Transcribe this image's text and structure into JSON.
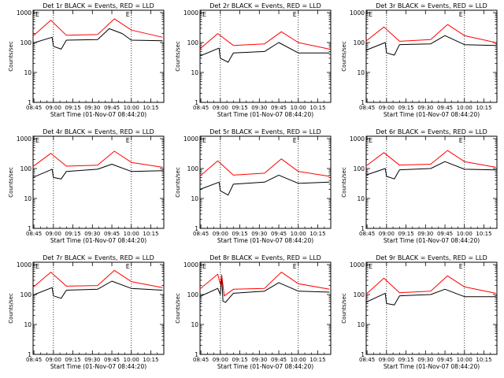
{
  "figure": {
    "start_label": "Start Time (01-Nov-07 08:44:20)",
    "ylabel": "Counts/sec",
    "corner_marker": "E",
    "x_ticks": [
      "08:45",
      "09:00",
      "09:15",
      "09:30",
      "09:45",
      "10:00",
      "10:15"
    ],
    "y_ticks": [
      "1",
      "10",
      "100",
      "1000"
    ]
  },
  "chart_data": [
    {
      "type": "line",
      "title": "Det 1r BLACK = Events, RED = LLD",
      "xlabel": "Start Time (01-Nov-07 08:44:20)",
      "ylabel": "Counts/sec",
      "y_scale": "log",
      "ylim": [
        1,
        1200
      ],
      "xlim": [
        "08:44:20",
        "10:25:00"
      ],
      "vlines": [
        "09:00",
        "10:00"
      ],
      "series": [
        {
          "name": "Events",
          "color": "#000000",
          "key_points": [
            [
              "08:44",
              "95"
            ],
            [
              "08:59",
              "150"
            ],
            [
              "09:00",
              "75"
            ],
            [
              "09:06",
              "60"
            ],
            [
              "09:10",
              "120"
            ],
            [
              "09:34",
              "125"
            ],
            [
              "09:43",
              "290"
            ],
            [
              "09:53",
              "200"
            ],
            [
              "10:00",
              "120"
            ],
            [
              "10:24",
              "115"
            ]
          ]
        },
        {
          "name": "LLD",
          "color": "#ff0000",
          "key_points": [
            [
              "08:44",
              "160"
            ],
            [
              "08:58",
              "560"
            ],
            [
              "09:10",
              "175"
            ],
            [
              "09:34",
              "185"
            ],
            [
              "09:47",
              "620"
            ],
            [
              "10:00",
              "260"
            ],
            [
              "10:24",
              "150"
            ]
          ]
        }
      ]
    },
    {
      "type": "line",
      "title": "Det 2r BLACK = Events, RED = LLD",
      "xlabel": "Start Time (01-Nov-07 08:44:20)",
      "ylabel": "Counts/sec",
      "y_scale": "log",
      "ylim": [
        1,
        1200
      ],
      "xlim": [
        "08:44:20",
        "10:25:00"
      ],
      "vlines": [
        "09:00",
        "10:00"
      ],
      "series": [
        {
          "name": "Events",
          "color": "#000000",
          "key_points": [
            [
              "08:44",
              "35"
            ],
            [
              "08:59",
              "65"
            ],
            [
              "09:00",
              "30"
            ],
            [
              "09:06",
              "22"
            ],
            [
              "09:10",
              "45"
            ],
            [
              "09:34",
              "50"
            ],
            [
              "09:45",
              "100"
            ],
            [
              "10:00",
              "45"
            ],
            [
              "10:24",
              "45"
            ]
          ]
        },
        {
          "name": "LLD",
          "color": "#ff0000",
          "key_points": [
            [
              "08:44",
              "60"
            ],
            [
              "08:58",
              "200"
            ],
            [
              "09:10",
              "80"
            ],
            [
              "09:34",
              "90"
            ],
            [
              "09:47",
              "230"
            ],
            [
              "10:00",
              "100"
            ],
            [
              "10:24",
              "60"
            ]
          ]
        }
      ]
    },
    {
      "type": "line",
      "title": "Det 3r BLACK = Events, RED = LLD",
      "xlabel": "Start Time (01-Nov-07 08:44:20)",
      "ylabel": "Counts/sec",
      "y_scale": "log",
      "ylim": [
        1,
        1200
      ],
      "xlim": [
        "08:44:20",
        "10:25:00"
      ],
      "vlines": [
        "09:00",
        "10:00"
      ],
      "series": [
        {
          "name": "Events",
          "color": "#000000",
          "key_points": [
            [
              "08:44",
              "55"
            ],
            [
              "08:59",
              "100"
            ],
            [
              "09:00",
              "45"
            ],
            [
              "09:06",
              "38"
            ],
            [
              "09:10",
              "85"
            ],
            [
              "09:34",
              "90"
            ],
            [
              "09:45",
              "170"
            ],
            [
              "10:00",
              "85"
            ],
            [
              "10:24",
              "80"
            ]
          ]
        },
        {
          "name": "LLD",
          "color": "#ff0000",
          "key_points": [
            [
              "08:44",
              "110"
            ],
            [
              "08:58",
              "330"
            ],
            [
              "09:10",
              "110"
            ],
            [
              "09:34",
              "125"
            ],
            [
              "09:47",
              "400"
            ],
            [
              "10:00",
              "170"
            ],
            [
              "10:24",
              "100"
            ]
          ]
        }
      ]
    },
    {
      "type": "line",
      "title": "Det 4r BLACK = Events, RED = LLD",
      "xlabel": "Start Time (01-Nov-07 08:44:20)",
      "ylabel": "Counts/sec",
      "y_scale": "log",
      "ylim": [
        1,
        1200
      ],
      "xlim": [
        "08:44:20",
        "10:25:00"
      ],
      "vlines": [
        "09:00",
        "10:00"
      ],
      "series": [
        {
          "name": "Events",
          "color": "#000000",
          "key_points": [
            [
              "08:44",
              "50"
            ],
            [
              "08:59",
              "95"
            ],
            [
              "09:00",
              "50"
            ],
            [
              "09:06",
              "45"
            ],
            [
              "09:10",
              "80"
            ],
            [
              "09:34",
              "95"
            ],
            [
              "09:45",
              "140"
            ],
            [
              "10:00",
              "80"
            ],
            [
              "10:24",
              "85"
            ]
          ]
        },
        {
          "name": "LLD",
          "color": "#ff0000",
          "key_points": [
            [
              "08:44",
              "115"
            ],
            [
              "08:58",
              "320"
            ],
            [
              "09:10",
              "120"
            ],
            [
              "09:34",
              "130"
            ],
            [
              "09:47",
              "380"
            ],
            [
              "10:00",
              "160"
            ],
            [
              "10:24",
              "110"
            ]
          ]
        }
      ]
    },
    {
      "type": "line",
      "title": "Det 5r BLACK = Events, RED = LLD",
      "xlabel": "Start Time (01-Nov-07 08:44:20)",
      "ylabel": "Counts/sec",
      "y_scale": "log",
      "ylim": [
        1,
        1200
      ],
      "xlim": [
        "08:44:20",
        "10:25:00"
      ],
      "vlines": [
        "09:00",
        "10:00"
      ],
      "series": [
        {
          "name": "Events",
          "color": "#000000",
          "key_points": [
            [
              "08:44",
              "20"
            ],
            [
              "08:59",
              "35"
            ],
            [
              "09:00",
              "18"
            ],
            [
              "09:06",
              "13"
            ],
            [
              "09:10",
              "30"
            ],
            [
              "09:34",
              "35"
            ],
            [
              "09:45",
              "60"
            ],
            [
              "10:00",
              "32"
            ],
            [
              "10:24",
              "35"
            ]
          ]
        },
        {
          "name": "LLD",
          "color": "#ff0000",
          "key_points": [
            [
              "08:44",
              "55"
            ],
            [
              "08:58",
              "180"
            ],
            [
              "09:10",
              "60"
            ],
            [
              "09:34",
              "70"
            ],
            [
              "09:47",
              "210"
            ],
            [
              "10:00",
              "80"
            ],
            [
              "10:24",
              "55"
            ]
          ]
        }
      ]
    },
    {
      "type": "line",
      "title": "Det 6r BLACK = Events, RED = LLD",
      "xlabel": "Start Time (01-Nov-07 08:44:20)",
      "ylabel": "Counts/sec",
      "y_scale": "log",
      "ylim": [
        1,
        1200
      ],
      "xlim": [
        "08:44:20",
        "10:25:00"
      ],
      "vlines": [
        "09:00",
        "10:00"
      ],
      "series": [
        {
          "name": "Events",
          "color": "#000000",
          "key_points": [
            [
              "08:44",
              "60"
            ],
            [
              "08:59",
              "100"
            ],
            [
              "09:00",
              "55"
            ],
            [
              "09:06",
              "45"
            ],
            [
              "09:10",
              "90"
            ],
            [
              "09:34",
              "100"
            ],
            [
              "09:45",
              "170"
            ],
            [
              "10:00",
              "95"
            ],
            [
              "10:24",
              "90"
            ]
          ]
        },
        {
          "name": "LLD",
          "color": "#ff0000",
          "key_points": [
            [
              "08:44",
              "120"
            ],
            [
              "08:58",
              "340"
            ],
            [
              "09:10",
              "130"
            ],
            [
              "09:34",
              "140"
            ],
            [
              "09:47",
              "400"
            ],
            [
              "10:00",
              "170"
            ],
            [
              "10:24",
              "110"
            ]
          ]
        }
      ]
    },
    {
      "type": "line",
      "title": "Det 7r BLACK = Events, RED = LLD",
      "xlabel": "Start Time (01-Nov-07 08:44:20)",
      "ylabel": "Counts/sec",
      "y_scale": "log",
      "ylim": [
        1,
        1200
      ],
      "xlim": [
        "08:44:20",
        "10:25:00"
      ],
      "vlines": [
        "09:00",
        "10:00"
      ],
      "series": [
        {
          "name": "Events",
          "color": "#000000",
          "key_points": [
            [
              "08:44",
              "95"
            ],
            [
              "08:59",
              "170"
            ],
            [
              "09:00",
              "90"
            ],
            [
              "09:06",
              "75"
            ],
            [
              "09:10",
              "140"
            ],
            [
              "09:34",
              "150"
            ],
            [
              "09:45",
              "280"
            ],
            [
              "10:00",
              "160"
            ],
            [
              "10:24",
              "140"
            ]
          ]
        },
        {
          "name": "LLD",
          "color": "#ff0000",
          "key_points": [
            [
              "08:44",
              "170"
            ],
            [
              "08:58",
              "560"
            ],
            [
              "09:10",
              "190"
            ],
            [
              "09:34",
              "200"
            ],
            [
              "09:47",
              "640"
            ],
            [
              "10:00",
              "270"
            ],
            [
              "10:24",
              "170"
            ]
          ]
        }
      ]
    },
    {
      "type": "line",
      "title": "Det 8r BLACK = Events, RED = LLD",
      "xlabel": "Start Time (01-Nov-07 08:44:20)",
      "ylabel": "Counts/sec",
      "y_scale": "log",
      "ylim": [
        1,
        1200
      ],
      "xlim": [
        "08:44:20",
        "10:25:00"
      ],
      "vlines": [
        "09:00",
        "10:00"
      ],
      "series": [
        {
          "name": "Events",
          "color": "#000000",
          "key_points": [
            [
              "08:44",
              "85"
            ],
            [
              "08:58",
              "160"
            ],
            [
              "09:00",
              "100"
            ],
            [
              "09:01",
              "450"
            ],
            [
              "09:02",
              "60"
            ],
            [
              "09:04",
              "55"
            ],
            [
              "09:10",
              "110"
            ],
            [
              "09:34",
              "130"
            ],
            [
              "09:45",
              "250"
            ],
            [
              "10:00",
              "130"
            ],
            [
              "10:24",
              "120"
            ]
          ]
        },
        {
          "name": "LLD",
          "color": "#ff0000",
          "key_points": [
            [
              "08:44",
              "150"
            ],
            [
              "08:58",
              "480"
            ],
            [
              "09:00",
              "220"
            ],
            [
              "09:01",
              "450"
            ],
            [
              "09:03",
              "90"
            ],
            [
              "09:10",
              "150"
            ],
            [
              "09:34",
              "160"
            ],
            [
              "09:47",
              "560"
            ],
            [
              "10:00",
              "230"
            ],
            [
              "10:24",
              "150"
            ]
          ]
        }
      ]
    },
    {
      "type": "line",
      "title": "Det 9r BLACK = Events, RED = LLD",
      "xlabel": "Start Time (01-Nov-07 08:44:20)",
      "ylabel": "Counts/sec",
      "y_scale": "log",
      "ylim": [
        1,
        1200
      ],
      "xlim": [
        "08:44:20",
        "10:25:00"
      ],
      "vlines": [
        "09:00",
        "10:00"
      ],
      "series": [
        {
          "name": "Events",
          "color": "#000000",
          "key_points": [
            [
              "08:44",
              "55"
            ],
            [
              "08:59",
              "110"
            ],
            [
              "09:00",
              "50"
            ],
            [
              "09:06",
              "45"
            ],
            [
              "09:10",
              "90"
            ],
            [
              "09:34",
              "100"
            ],
            [
              "09:45",
              "150"
            ],
            [
              "10:00",
              "85"
            ],
            [
              "10:24",
              "85"
            ]
          ]
        },
        {
          "name": "LLD",
          "color": "#ff0000",
          "key_points": [
            [
              "08:44",
              "100"
            ],
            [
              "08:58",
              "350"
            ],
            [
              "09:10",
              "115"
            ],
            [
              "09:34",
              "130"
            ],
            [
              "09:47",
              "420"
            ],
            [
              "10:00",
              "180"
            ],
            [
              "10:24",
              "110"
            ]
          ]
        }
      ]
    }
  ]
}
